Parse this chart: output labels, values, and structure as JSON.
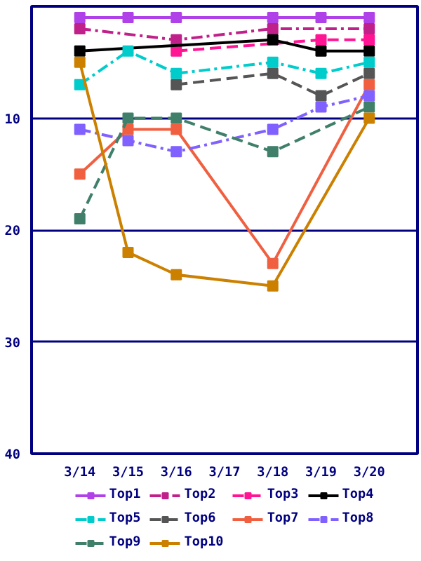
{
  "chart_data": {
    "type": "line",
    "categories": [
      "3/14",
      "3/15",
      "3/16",
      "3/17",
      "3/18",
      "3/19",
      "3/20"
    ],
    "ylim": [
      40,
      0
    ],
    "yticks": [
      10,
      20,
      30,
      40
    ],
    "grid": "y",
    "legend": "bottom",
    "marker": "square",
    "series": [
      {
        "name": "Top1",
        "color": "#b040e8",
        "line_style": "solid",
        "values": [
          1,
          1,
          1,
          null,
          1,
          1,
          1
        ]
      },
      {
        "name": "Top2",
        "color": "#c0208a",
        "line_style": "dashdot",
        "values": [
          2,
          null,
          3,
          null,
          2,
          null,
          2
        ]
      },
      {
        "name": "Top3",
        "color": "#ff1493",
        "line_style": "dashed",
        "values": [
          null,
          null,
          4,
          null,
          null,
          3,
          3
        ]
      },
      {
        "name": "Top4",
        "color": "#000000",
        "line_style": "solid",
        "values": [
          4,
          null,
          null,
          null,
          3,
          4,
          4
        ]
      },
      {
        "name": "Top5",
        "color": "#00cccc",
        "line_style": "dashdot",
        "values": [
          7,
          4,
          6,
          null,
          5,
          6,
          5
        ]
      },
      {
        "name": "Top6",
        "color": "#555555",
        "line_style": "dashed",
        "values": [
          null,
          null,
          7,
          null,
          6,
          8,
          6
        ]
      },
      {
        "name": "Top7",
        "color": "#f06040",
        "line_style": "solid",
        "values": [
          15,
          11,
          11,
          null,
          23,
          null,
          7
        ]
      },
      {
        "name": "Top8",
        "color": "#8060ff",
        "line_style": "dashdot",
        "values": [
          11,
          12,
          13,
          null,
          11,
          9,
          8
        ]
      },
      {
        "name": "Top9",
        "color": "#40806a",
        "line_style": "dashed",
        "values": [
          19,
          10,
          10,
          null,
          13,
          null,
          9
        ]
      },
      {
        "name": "Top10",
        "color": "#cc8000",
        "line_style": "solid",
        "values": [
          5,
          22,
          24,
          null,
          25,
          null,
          10
        ]
      }
    ]
  }
}
